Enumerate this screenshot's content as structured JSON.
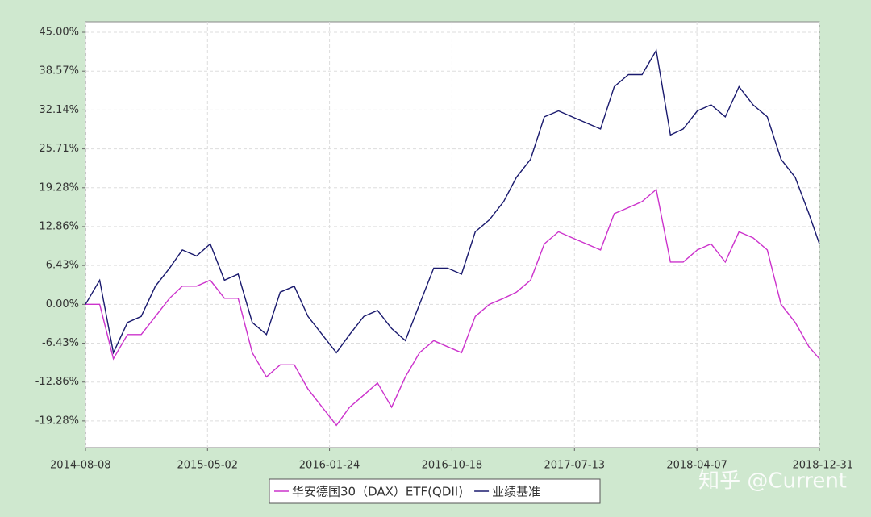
{
  "chart_data": {
    "type": "line",
    "x": [
      "2014-08-08",
      "2014-09-08",
      "2014-10-08",
      "2014-11-08",
      "2014-12-08",
      "2015-01-08",
      "2015-02-08",
      "2015-03-08",
      "2015-04-08",
      "2015-05-08",
      "2015-06-08",
      "2015-07-08",
      "2015-08-08",
      "2015-09-08",
      "2015-10-08",
      "2015-11-08",
      "2015-12-08",
      "2016-01-08",
      "2016-02-08",
      "2016-03-08",
      "2016-04-08",
      "2016-05-08",
      "2016-06-08",
      "2016-07-08",
      "2016-08-08",
      "2016-09-08",
      "2016-10-08",
      "2016-11-08",
      "2016-12-08",
      "2017-01-08",
      "2017-02-08",
      "2017-03-08",
      "2017-04-08",
      "2017-05-08",
      "2017-06-08",
      "2017-07-08",
      "2017-08-08",
      "2017-09-08",
      "2017-10-08",
      "2017-11-08",
      "2017-12-08",
      "2018-01-08",
      "2018-02-08",
      "2018-03-08",
      "2018-04-08",
      "2018-05-08",
      "2018-06-08",
      "2018-07-08",
      "2018-08-08",
      "2018-09-08",
      "2018-10-08",
      "2018-11-08",
      "2018-12-08",
      "2018-12-31"
    ],
    "series": [
      {
        "name": "华安德国30（DAX）ETF(QDII)",
        "color": "#cc33cc",
        "values": [
          0,
          0,
          -9,
          -5,
          -5,
          -2,
          1,
          3,
          3,
          4,
          1,
          1,
          -8,
          -12,
          -10,
          -10,
          -14,
          -17,
          -20,
          -17,
          -15,
          -13,
          -17,
          -12,
          -8,
          -6,
          -7,
          -8,
          -2,
          0,
          1,
          2,
          4,
          10,
          12,
          11,
          10,
          9,
          15,
          16,
          17,
          19,
          7,
          7,
          9,
          10,
          7,
          12,
          11,
          9,
          0,
          -3,
          -7,
          -9
        ]
      },
      {
        "name": "业绩基准",
        "color": "#1a1a6e",
        "values": [
          0,
          4,
          -8,
          -3,
          -2,
          3,
          6,
          9,
          8,
          10,
          4,
          5,
          -3,
          -5,
          2,
          3,
          -2,
          -5,
          -8,
          -5,
          -2,
          -1,
          -4,
          -6,
          0,
          6,
          6,
          5,
          12,
          14,
          17,
          21,
          24,
          31,
          32,
          31,
          30,
          29,
          36,
          38,
          38,
          42,
          28,
          29,
          32,
          33,
          31,
          36,
          33,
          31,
          24,
          21,
          15,
          10
        ]
      }
    ],
    "xlim": [
      "2014-08-08",
      "2018-12-31"
    ],
    "xticks": [
      "2014-08-08",
      "2015-05-02",
      "2016-01-24",
      "2016-10-18",
      "2017-07-13",
      "2018-04-07",
      "2018-12-31"
    ],
    "ylim": [
      -23.7,
      45
    ],
    "yticks": [
      {
        "value": 45,
        "label": "45.00%"
      },
      {
        "value": 38.57,
        "label": "38.57%"
      },
      {
        "value": 32.14,
        "label": "32.14%"
      },
      {
        "value": 25.71,
        "label": "25.71%"
      },
      {
        "value": 19.28,
        "label": "19.28%"
      },
      {
        "value": 12.86,
        "label": "12.86%"
      },
      {
        "value": 6.43,
        "label": "6.43%"
      },
      {
        "value": 0,
        "label": "0.00%"
      },
      {
        "value": -6.43,
        "label": "-6.43%"
      },
      {
        "value": -12.86,
        "label": "-12.86%"
      },
      {
        "value": -19.28,
        "label": "-19.28%"
      }
    ],
    "grid": true,
    "watermark": "知乎 @Current"
  }
}
